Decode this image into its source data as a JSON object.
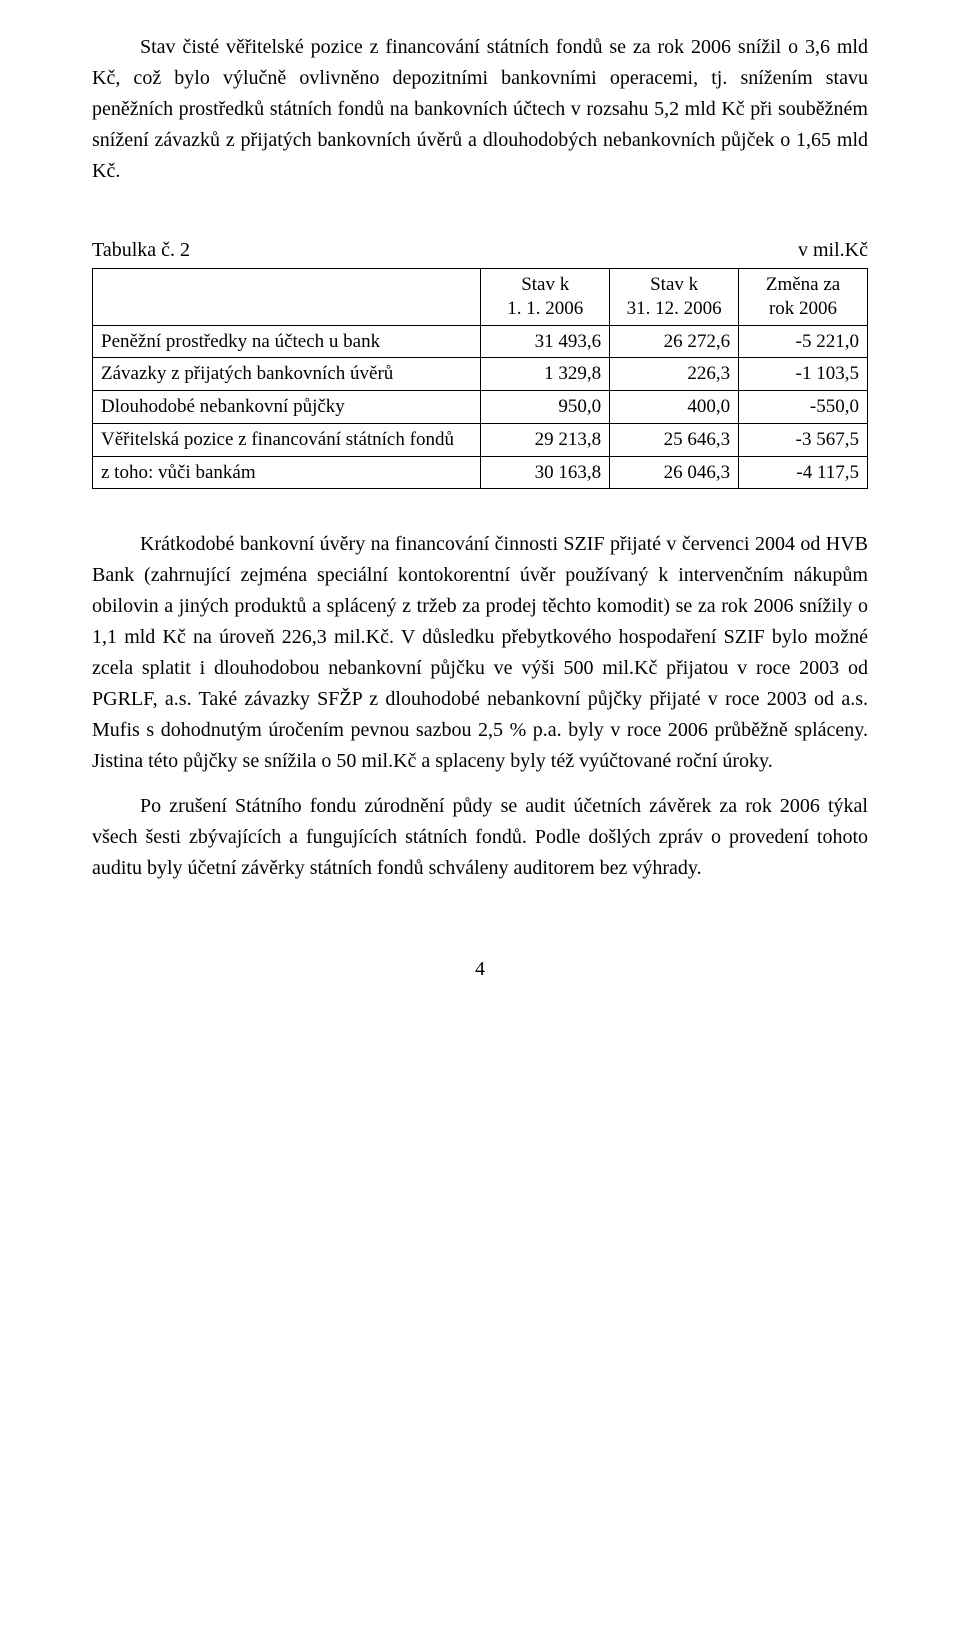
{
  "para1": "Stav čisté věřitelské pozice z financování státních fondů se za rok 2006 snížil o 3,6 mld Kč, což bylo výlučně ovlivněno depozitními bankovními operacemi, tj. snížením stavu peněžních prostředků státních fondů na bankovních účtech v rozsahu 5,2 mld Kč při souběžném snížení závazků z přijatých bankovních úvěrů a dlouhodobých nebankovních půjček o 1,65 mld Kč.",
  "table": {
    "caption_left": "Tabulka č. 2",
    "caption_right": "v mil.Kč",
    "header": {
      "col0": "",
      "col1_line1": "Stav k",
      "col1_line2": "1. 1. 2006",
      "col2_line1": "Stav k",
      "col2_line2": "31. 12. 2006",
      "col3_line1": "Změna za",
      "col3_line2": "rok 2006"
    },
    "rows": [
      {
        "label": "Peněžní prostředky na účtech u bank",
        "c1": "31 493,6",
        "c2": "26 272,6",
        "c3": "-5 221,0"
      },
      {
        "label": "Závazky z přijatých bankovních úvěrů",
        "c1": "1 329,8",
        "c2": "226,3",
        "c3": "-1 103,5"
      },
      {
        "label": "Dlouhodobé nebankovní půjčky",
        "c1": "950,0",
        "c2": "400,0",
        "c3": "-550,0"
      },
      {
        "label": "Věřitelská pozice z financování státních fondů",
        "c1": "29 213,8",
        "c2": "25 646,3",
        "c3": "-3 567,5"
      },
      {
        "label": "z toho: vůči bankám",
        "c1": "30 163,8",
        "c2": "26 046,3",
        "c3": "-4 117,5"
      }
    ]
  },
  "para2": "Krátkodobé bankovní úvěry na financování činnosti SZIF přijaté v červenci 2004 od HVB Bank (zahrnující zejména speciální kontokorentní úvěr používaný k intervenčním nákupům obilovin a jiných produktů a splácený z tržeb za prodej těchto komodit) se za rok 2006 snížily o 1,1 mld Kč na úroveň 226,3 mil.Kč. V důsledku přebytkového hospodaření SZIF bylo možné zcela splatit i dlouhodobou nebankovní půjčku ve výši 500 mil.Kč přijatou v roce 2003 od PGRLF, a.s. Také závazky SFŽP z dlouhodobé nebankovní půjčky přijaté v roce 2003 od a.s. Mufis s dohodnutým úročením pevnou sazbou 2,5 % p.a. byly v roce 2006 průběžně spláceny. Jistina této půjčky se snížila o 50 mil.Kč a splaceny byly též vyúčtované roční úroky.",
  "para3": "Po zrušení Státního fondu zúrodnění půdy se audit účetních závěrek za rok 2006 týkal všech šesti zbývajících a fungujících státních fondů. Podle došlých zpráv o provedení tohoto auditu byly účetní závěrky státních fondů schváleny auditorem bez výhrady.",
  "page_number": "4"
}
